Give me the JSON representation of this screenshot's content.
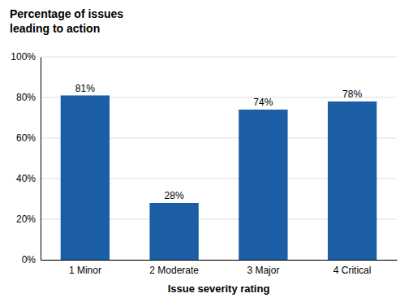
{
  "chart_data": {
    "type": "bar",
    "title": "Percentage of issues\nleading to action",
    "xlabel": "Issue severity rating",
    "categories": [
      "1 Minor",
      "2 Moderate",
      "3 Major",
      "4 Critical"
    ],
    "values": [
      81,
      28,
      74,
      78
    ],
    "value_labels": [
      "81%",
      "28%",
      "74%",
      "78%"
    ],
    "data_labels": true,
    "color": "#1B5EA6",
    "ylim": [
      0,
      100
    ],
    "yticks": [
      {
        "value": 0,
        "label": "0%"
      },
      {
        "value": 20,
        "label": "20%"
      },
      {
        "value": 40,
        "label": "40%"
      },
      {
        "value": 60,
        "label": "60%"
      },
      {
        "value": 80,
        "label": "80%"
      },
      {
        "value": 100,
        "label": "100%"
      }
    ],
    "grid": true
  }
}
